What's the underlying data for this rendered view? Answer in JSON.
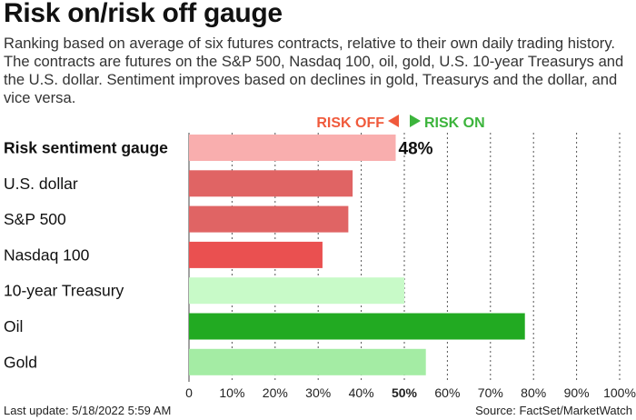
{
  "header": {
    "title": "Risk on/risk off gauge",
    "subtitle": "Ranking based on average of six futures contracts, relative to their own daily trading history. The contracts are futures on the S&P 500, Nasdaq 100, oil, gold, U.S. 10-year Treasurys and the U.S. dollar. Sentiment improves based on declines in gold, Treasurys and the dollar, and vice versa."
  },
  "legend": {
    "risk_off": "RISK OFF",
    "risk_on": "RISK ON",
    "risk_off_color": "#f05a3c",
    "risk_on_color": "#3cb43c"
  },
  "footer": {
    "last_update": "Last update: 5/18/2022 5:59 AM",
    "source": "Source: FactSet/MarketWatch"
  },
  "chart_data": {
    "type": "bar",
    "orientation": "horizontal",
    "categories": [
      "Risk sentiment gauge",
      "U.S. dollar",
      "S&P 500",
      "Nasdaq 100",
      "10-year Treasury",
      "Oil",
      "Gold"
    ],
    "values": [
      48,
      38,
      37,
      31,
      50,
      78,
      55
    ],
    "colors": [
      "#f9aeae",
      "#e06464",
      "#e06464",
      "#ea5050",
      "#c8fac8",
      "#22aa22",
      "#a4eca4"
    ],
    "data_labels": [
      "48%",
      "",
      "",
      "",
      "",
      "",
      ""
    ],
    "highlight_category": "Risk sentiment gauge",
    "xlim": [
      0,
      100
    ],
    "xticks": [
      "0",
      "10%",
      "20%",
      "30%",
      "40%",
      "50%",
      "60%",
      "70%",
      "80%",
      "90%",
      "100%"
    ],
    "bold_tick": "50%",
    "grid": "dotted vertical",
    "xlabel": "",
    "ylabel": ""
  }
}
